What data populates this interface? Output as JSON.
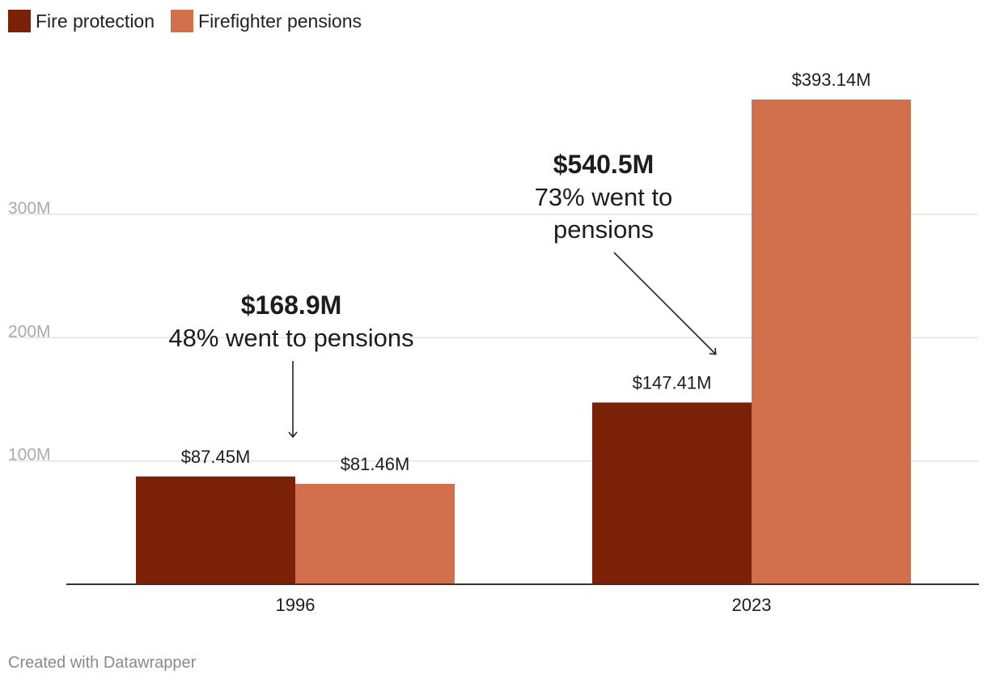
{
  "colors": {
    "fire_protection": "#7a2108",
    "firefighter_pensions": "#d26f4d",
    "gridline": "#e3e3e3",
    "baseline": "#333333",
    "tick_label": "#aaaaaa"
  },
  "legend": [
    {
      "label": "Fire protection",
      "color_key": "fire_protection"
    },
    {
      "label": "Firefighter pensions",
      "color_key": "firefighter_pensions"
    }
  ],
  "chart_data": {
    "type": "bar",
    "categories": [
      "1996",
      "2023"
    ],
    "series": [
      {
        "name": "Fire protection",
        "values": [
          87.45,
          147.41
        ],
        "labels": [
          "$87.45M",
          "$147.41M"
        ]
      },
      {
        "name": "Firefighter pensions",
        "values": [
          81.46,
          393.14
        ],
        "labels": [
          "$81.46M",
          "$393.14M"
        ]
      }
    ],
    "y_ticks": [
      {
        "value": 100,
        "label": "100M"
      },
      {
        "value": 200,
        "label": "200M"
      },
      {
        "value": 300,
        "label": "300M"
      }
    ],
    "ylim": [
      0,
      393.14
    ],
    "grid": true,
    "legend_position": "top-left",
    "annotations": [
      {
        "category": "1996",
        "total": "$168.9M",
        "note": "48% went to pensions"
      },
      {
        "category": "2023",
        "total": "$540.5M",
        "note_lines": [
          "73% went to",
          "pensions"
        ]
      }
    ]
  },
  "footer": "Created with Datawrapper"
}
